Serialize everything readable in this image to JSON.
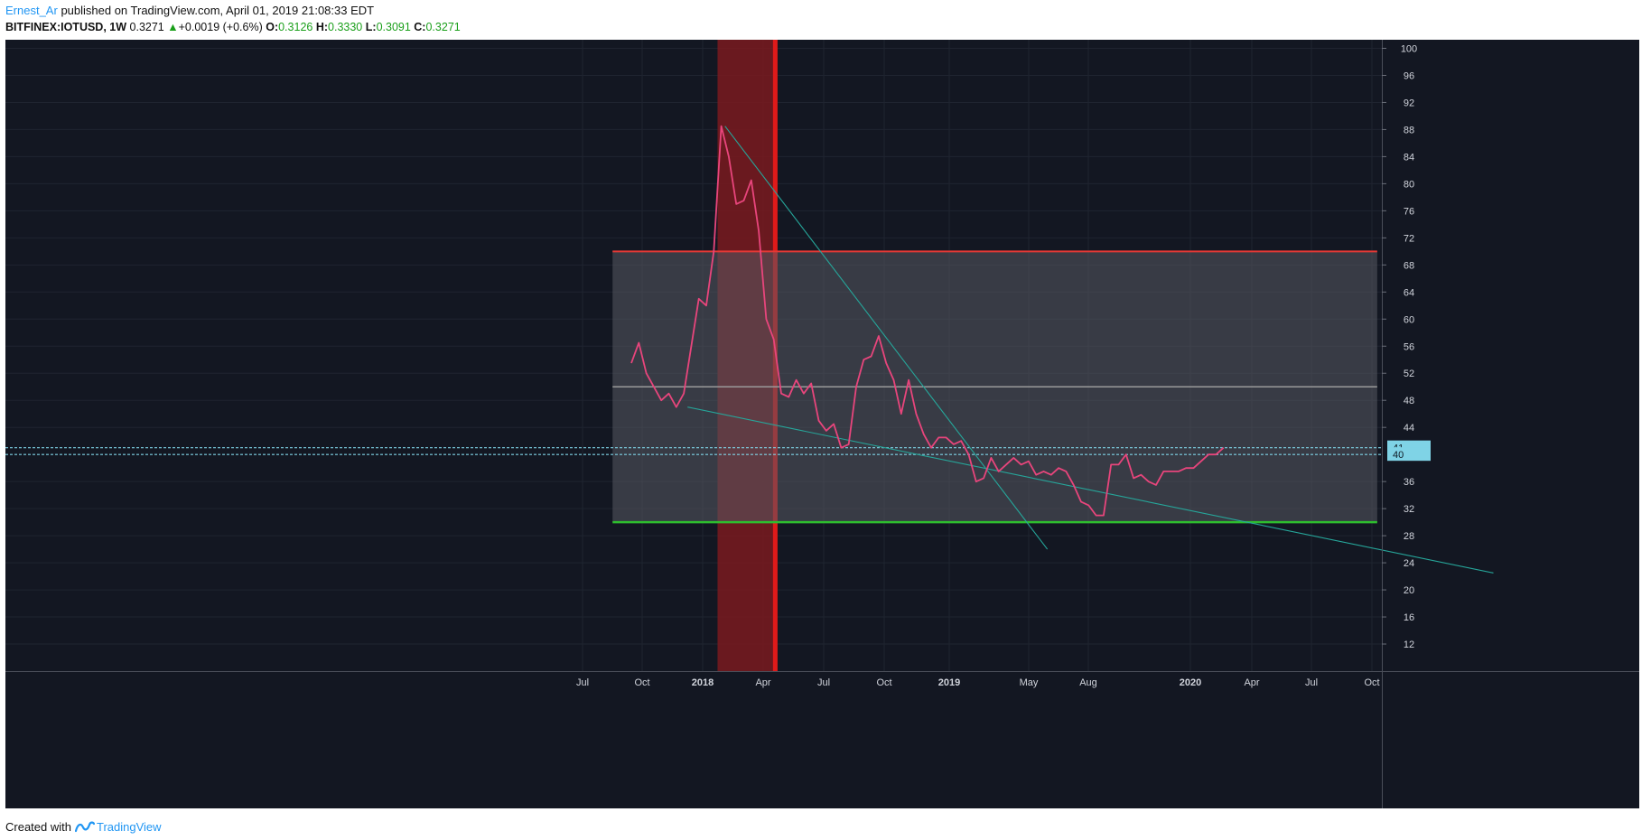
{
  "header": {
    "author": "Ernest_Ar",
    "published_text": "published on TradingView.com, April 01, 2019 21:08:33 EDT",
    "symbol": "BITFINEX:IOTUSD, 1W",
    "last": "0.3271",
    "change_arrow": "▲",
    "change": "+0.0019 (+0.6%)",
    "open_label": "O:",
    "open": "0.3126",
    "high_label": "H:",
    "high": "0.3330",
    "low_label": "L:",
    "low": "0.3091",
    "close_label": "C:",
    "close": "0.3271"
  },
  "footer": {
    "created_with": "Created with",
    "brand": "TradingView",
    "logo_icon": "tradingview-logo-icon"
  },
  "colors": {
    "background": "#131722",
    "grid": "#1f2430",
    "price_line": "#e8457c",
    "trend_line": "#26a69a",
    "box_fill": "#585a62",
    "box_top": "#e53935",
    "box_bottom": "#2ebd2e",
    "box_mid": "#9a9a9a",
    "highlight_band": "#7a1a1e",
    "highlight_edge": "#e01a1a",
    "level_line": "#7fd3e6",
    "axis_text": "#d1d4dc"
  },
  "chart_data": {
    "type": "line",
    "ylim": [
      8,
      101
    ],
    "grid": true,
    "y_ticks": [
      "100",
      "96",
      "92",
      "88",
      "84",
      "80",
      "76",
      "72",
      "68",
      "64",
      "60",
      "56",
      "52",
      "48",
      "44",
      "36",
      "32",
      "28",
      "24",
      "20",
      "16",
      "12"
    ],
    "x_ticks": [
      {
        "label": "Jul",
        "bold": false
      },
      {
        "label": "Oct",
        "bold": false
      },
      {
        "label": "2018",
        "bold": true
      },
      {
        "label": "Apr",
        "bold": false
      },
      {
        "label": "Jul",
        "bold": false
      },
      {
        "label": "Oct",
        "bold": false
      },
      {
        "label": "2019",
        "bold": true
      },
      {
        "label": "May",
        "bold": false
      },
      {
        "label": "Aug",
        "bold": false
      },
      {
        "label": "2020",
        "bold": true
      },
      {
        "label": "Apr",
        "bold": false
      },
      {
        "label": "Jul",
        "bold": false
      },
      {
        "label": "Oct",
        "bold": false
      }
    ],
    "series": [
      {
        "values": [
          53.5,
          56.5,
          52,
          50,
          48,
          49,
          47,
          49,
          56,
          63,
          62,
          70,
          88.5,
          84,
          77,
          77.5,
          80.5,
          73,
          60,
          57,
          49,
          48.5,
          51,
          49,
          50.5,
          45,
          43.5,
          44.5,
          41,
          41.5,
          50,
          54,
          54.5,
          57.5,
          53.5,
          51,
          46,
          51,
          46,
          43,
          41,
          42.5,
          42.5,
          41.5,
          42,
          40,
          36,
          36.5,
          39.5,
          37.5,
          38.5,
          39.5,
          38.5,
          39,
          37,
          37.5,
          37,
          38,
          37.5,
          35.5,
          33,
          32.5,
          31,
          31,
          38.5,
          38.5,
          40,
          36.5,
          37,
          36,
          35.5,
          37.5,
          37.5,
          37.5,
          38,
          38,
          39,
          40,
          40,
          41
        ]
      }
    ],
    "trend_lines": [
      {
        "from": [
          12.5,
          88.5
        ],
        "to": [
          55.5,
          26
        ]
      },
      {
        "from": [
          7.5,
          47
        ],
        "to": [
          115,
          22.5
        ]
      }
    ],
    "box": {
      "x_from": -2.5,
      "x_to": 99.5,
      "top": 70,
      "bottom": 30,
      "mid": 50
    },
    "highlight": {
      "x_from": 11.5,
      "x_to": 19.5
    },
    "horizontal_levels": [
      41,
      40
    ],
    "price_labels": [
      "41",
      "40"
    ]
  }
}
